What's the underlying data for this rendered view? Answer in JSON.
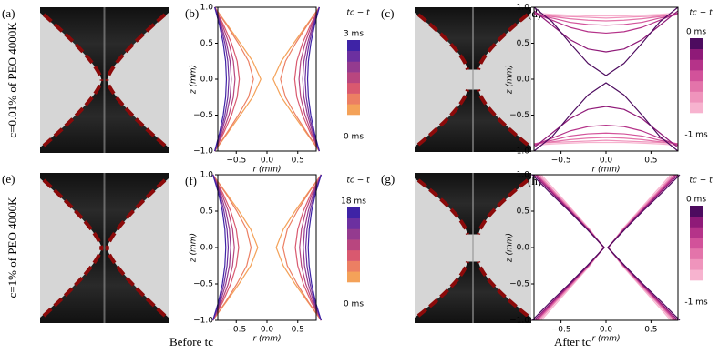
{
  "figure": {
    "row_labels": [
      "c=0.01% of PEO 4000K",
      "c=1% of PEO 4000K"
    ],
    "column_labels": [
      "Before tc",
      "After tc"
    ],
    "photo_panels": [
      "(a)",
      "(c)",
      "(e)",
      "(g)"
    ]
  },
  "chart_data": [
    {
      "type": "line",
      "panel": "(b)",
      "xlabel": "r (mm)",
      "ylabel": "z (mm)",
      "xlim": [
        -0.8,
        0.8
      ],
      "ylim": [
        -1,
        1
      ],
      "xticks": [
        {
          "value": -0.5,
          "label": "−0.5"
        },
        {
          "value": 0,
          "label": "0.0"
        },
        {
          "value": 0.5,
          "label": "0.5"
        }
      ],
      "yticks": [
        {
          "value": -1,
          "label": "−1.0"
        },
        {
          "value": -0.5,
          "label": "−0.5"
        },
        {
          "value": 0,
          "label": "0.0"
        },
        {
          "value": 0.5,
          "label": "0.5"
        },
        {
          "value": 1,
          "label": "1.0"
        }
      ],
      "colorbar": {
        "title": "tc − t",
        "top": "3 ms",
        "bottom": "0 ms"
      },
      "y": [
        -1,
        -0.75,
        -0.5,
        -0.25,
        0,
        0.25,
        0.5,
        0.75,
        1
      ],
      "series": [
        {
          "color": "#f4a259",
          "values": [
            0.85,
            0.641,
            0.434,
            0.233,
            0.1,
            0.233,
            0.434,
            0.641,
            0.85
          ]
        },
        {
          "color": "#ec7f63",
          "values": [
            0.85,
            0.654,
            0.466,
            0.301,
            0.22,
            0.301,
            0.466,
            0.654,
            0.85
          ]
        },
        {
          "color": "#d9596f",
          "values": [
            0.85,
            0.704,
            0.577,
            0.485,
            0.45,
            0.485,
            0.577,
            0.704,
            0.85
          ]
        },
        {
          "color": "#b8467f",
          "values": [
            0.85,
            0.724,
            0.619,
            0.547,
            0.52,
            0.547,
            0.619,
            0.724,
            0.85
          ]
        },
        {
          "color": "#943b8f",
          "values": [
            0.85,
            0.744,
            0.658,
            0.6,
            0.58,
            0.6,
            0.658,
            0.744,
            0.85
          ]
        },
        {
          "color": "#6c30a0",
          "values": [
            0.85,
            0.758,
            0.685,
            0.637,
            0.62,
            0.637,
            0.685,
            0.758,
            0.85
          ]
        },
        {
          "color": "#3e23a6",
          "values": [
            0.85,
            0.773,
            0.712,
            0.673,
            0.66,
            0.673,
            0.712,
            0.773,
            0.85
          ]
        }
      ]
    },
    {
      "type": "line",
      "panel": "(d)",
      "xlabel": "r (mm)",
      "ylabel": "z (mm)",
      "xlim": [
        -0.8,
        0.8
      ],
      "ylim": [
        -1,
        1
      ],
      "xticks": [
        {
          "value": -0.5,
          "label": "−0.5"
        },
        {
          "value": 0,
          "label": "0.0"
        },
        {
          "value": 0.5,
          "label": "0.5"
        }
      ],
      "yticks": [
        {
          "value": -1,
          "label": "−1.0"
        },
        {
          "value": -0.5,
          "label": "−0.5"
        },
        {
          "value": 0,
          "label": "0.0"
        },
        {
          "value": 0.5,
          "label": "0.5"
        },
        {
          "value": 1,
          "label": "1.0"
        }
      ],
      "colorbar": {
        "title": "tc − t",
        "top": "0 ms",
        "bottom": "-1 ms"
      },
      "x": [
        -0.8,
        -0.6,
        -0.4,
        -0.2,
        0,
        0.2,
        0.4,
        0.6,
        0.8
      ],
      "series": [
        {
          "color": "#f7b3cf",
          "values": [
            0.92,
            0.9,
            0.89,
            0.88,
            0.88,
            0.88,
            0.89,
            0.9,
            0.92
          ]
        },
        {
          "color": "#ef94bc",
          "values": [
            0.9,
            0.88,
            0.87,
            0.86,
            0.85,
            0.86,
            0.87,
            0.88,
            0.9
          ]
        },
        {
          "color": "#e374aa",
          "values": [
            0.9,
            0.87,
            0.84,
            0.82,
            0.81,
            0.82,
            0.84,
            0.87,
            0.9
          ]
        },
        {
          "color": "#d2529a",
          "values": [
            0.9,
            0.85,
            0.79,
            0.76,
            0.75,
            0.76,
            0.79,
            0.85,
            0.9
          ]
        },
        {
          "color": "#b53389",
          "values": [
            0.92,
            0.82,
            0.72,
            0.66,
            0.64,
            0.66,
            0.72,
            0.82,
            0.92
          ]
        },
        {
          "color": "#8f1a78",
          "values": [
            0.95,
            0.75,
            0.55,
            0.42,
            0.38,
            0.42,
            0.55,
            0.75,
            0.95
          ]
        },
        {
          "color": "#4d0b5f",
          "values": [
            1.0,
            0.8,
            0.5,
            0.22,
            0.05,
            0.22,
            0.5,
            0.8,
            1.0
          ]
        }
      ]
    },
    {
      "type": "line",
      "panel": "(f)",
      "xlabel": "r (mm)",
      "ylabel": "z (mm)",
      "xlim": [
        -0.8,
        0.8
      ],
      "ylim": [
        -1,
        1
      ],
      "xticks": [
        {
          "value": -0.5,
          "label": "−0.5"
        },
        {
          "value": 0,
          "label": "0.0"
        },
        {
          "value": 0.5,
          "label": "0.5"
        }
      ],
      "yticks": [
        {
          "value": -1,
          "label": "−1.0"
        },
        {
          "value": -0.5,
          "label": "−0.5"
        },
        {
          "value": 0,
          "label": "0.0"
        },
        {
          "value": 0.5,
          "label": "0.5"
        },
        {
          "value": 1,
          "label": "1.0"
        }
      ],
      "colorbar": {
        "title": "tc − t",
        "top": "18 ms",
        "bottom": "0 ms"
      },
      "y": [
        -1,
        -0.75,
        -0.5,
        -0.25,
        0,
        0.25,
        0.5,
        0.75,
        1
      ],
      "series": [
        {
          "color": "#f4a259",
          "values": [
            0.88,
            0.665,
            0.455,
            0.265,
            0.15,
            0.265,
            0.455,
            0.665,
            0.88
          ]
        },
        {
          "color": "#ec7f63",
          "values": [
            0.88,
            0.675,
            0.49,
            0.33,
            0.26,
            0.33,
            0.49,
            0.675,
            0.88
          ]
        },
        {
          "color": "#d9596f",
          "values": [
            0.88,
            0.72,
            0.59,
            0.5,
            0.46,
            0.5,
            0.59,
            0.72,
            0.88
          ]
        },
        {
          "color": "#b8467f",
          "values": [
            0.88,
            0.74,
            0.63,
            0.56,
            0.53,
            0.56,
            0.63,
            0.74,
            0.88
          ]
        },
        {
          "color": "#943b8f",
          "values": [
            0.88,
            0.76,
            0.67,
            0.61,
            0.59,
            0.61,
            0.67,
            0.76,
            0.88
          ]
        },
        {
          "color": "#6c30a0",
          "values": [
            0.88,
            0.775,
            0.7,
            0.65,
            0.63,
            0.65,
            0.7,
            0.775,
            0.88
          ]
        },
        {
          "color": "#3e23a6",
          "values": [
            0.88,
            0.79,
            0.725,
            0.685,
            0.67,
            0.685,
            0.725,
            0.79,
            0.88
          ]
        }
      ]
    },
    {
      "type": "line",
      "panel": "(h)",
      "xlabel": "r (mm)",
      "ylabel": "z (mm)",
      "xlim": [
        -0.8,
        0.8
      ],
      "ylim": [
        -1,
        1
      ],
      "xticks": [
        {
          "value": -0.5,
          "label": "−0.5"
        },
        {
          "value": 0,
          "label": "0.0"
        },
        {
          "value": 0.5,
          "label": "0.5"
        }
      ],
      "yticks": [
        {
          "value": -1,
          "label": "−1.0"
        },
        {
          "value": -0.5,
          "label": "−0.5"
        },
        {
          "value": 0,
          "label": "0.0"
        },
        {
          "value": 0.5,
          "label": "0.5"
        },
        {
          "value": 1,
          "label": "1.0"
        }
      ],
      "colorbar": {
        "title": "tc − t",
        "top": "0 ms",
        "bottom": "-1 ms"
      },
      "y": [
        -1,
        -0.75,
        -0.5,
        -0.25,
        0,
        0.25,
        0.5,
        0.75,
        1
      ],
      "series": [
        {
          "color": "#f7b3cf",
          "values": [
            0.72,
            0.54,
            0.36,
            0.18,
            0.03,
            0.18,
            0.36,
            0.54,
            0.72
          ]
        },
        {
          "color": "#ef94bc",
          "values": [
            0.74,
            0.56,
            0.37,
            0.19,
            0.03,
            0.19,
            0.37,
            0.56,
            0.74
          ]
        },
        {
          "color": "#e374aa",
          "values": [
            0.76,
            0.57,
            0.38,
            0.19,
            0.02,
            0.19,
            0.38,
            0.57,
            0.76
          ]
        },
        {
          "color": "#d2529a",
          "values": [
            0.77,
            0.58,
            0.39,
            0.2,
            0.02,
            0.2,
            0.39,
            0.58,
            0.77
          ]
        },
        {
          "color": "#b53389",
          "values": [
            0.78,
            0.59,
            0.39,
            0.2,
            0.02,
            0.2,
            0.39,
            0.59,
            0.78
          ]
        },
        {
          "color": "#8f1a78",
          "values": [
            0.8,
            0.6,
            0.4,
            0.2,
            0.02,
            0.2,
            0.4,
            0.6,
            0.8
          ]
        },
        {
          "color": "#4d0b5f",
          "values": [
            0.82,
            0.62,
            0.41,
            0.21,
            0.02,
            0.21,
            0.41,
            0.62,
            0.82
          ]
        }
      ]
    }
  ]
}
